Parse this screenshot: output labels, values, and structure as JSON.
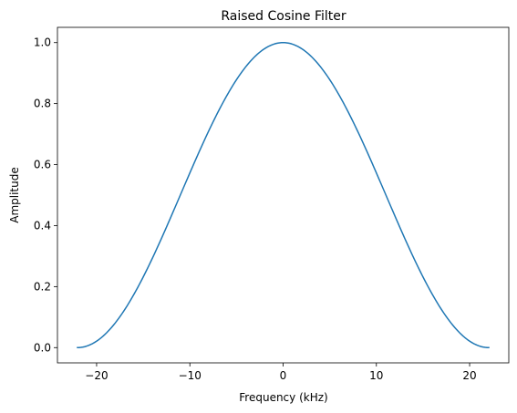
{
  "chart_data": {
    "type": "line",
    "title": "Raised Cosine Filter",
    "xlabel": "Frequency (kHz)",
    "ylabel": "Amplitude",
    "xlim": [
      -24.2,
      24.2
    ],
    "ylim": [
      -0.05,
      1.05
    ],
    "xticks": [
      -20,
      -10,
      0,
      10,
      20
    ],
    "xtick_labels": [
      "−20",
      "−10",
      "0",
      "10",
      "20"
    ],
    "yticks": [
      0.0,
      0.2,
      0.4,
      0.6,
      0.8,
      1.0
    ],
    "ytick_labels": [
      "0.0",
      "0.2",
      "0.4",
      "0.6",
      "0.8",
      "1.0"
    ],
    "grid": false,
    "legend": "none",
    "series": [
      {
        "color": "#1f77b4",
        "x": [
          -22.05,
          -20,
          -18,
          -16,
          -14,
          -12,
          -10,
          -8,
          -6,
          -4,
          -2,
          0,
          2,
          4,
          6,
          8,
          10,
          12,
          14,
          16,
          18,
          20,
          22.05
        ],
        "y": [
          0.0,
          0.02,
          0.08,
          0.17,
          0.29,
          0.42,
          0.57,
          0.71,
          0.82,
          0.92,
          0.98,
          1.0,
          0.98,
          0.92,
          0.82,
          0.71,
          0.57,
          0.42,
          0.29,
          0.17,
          0.08,
          0.02,
          0.0
        ]
      }
    ]
  }
}
